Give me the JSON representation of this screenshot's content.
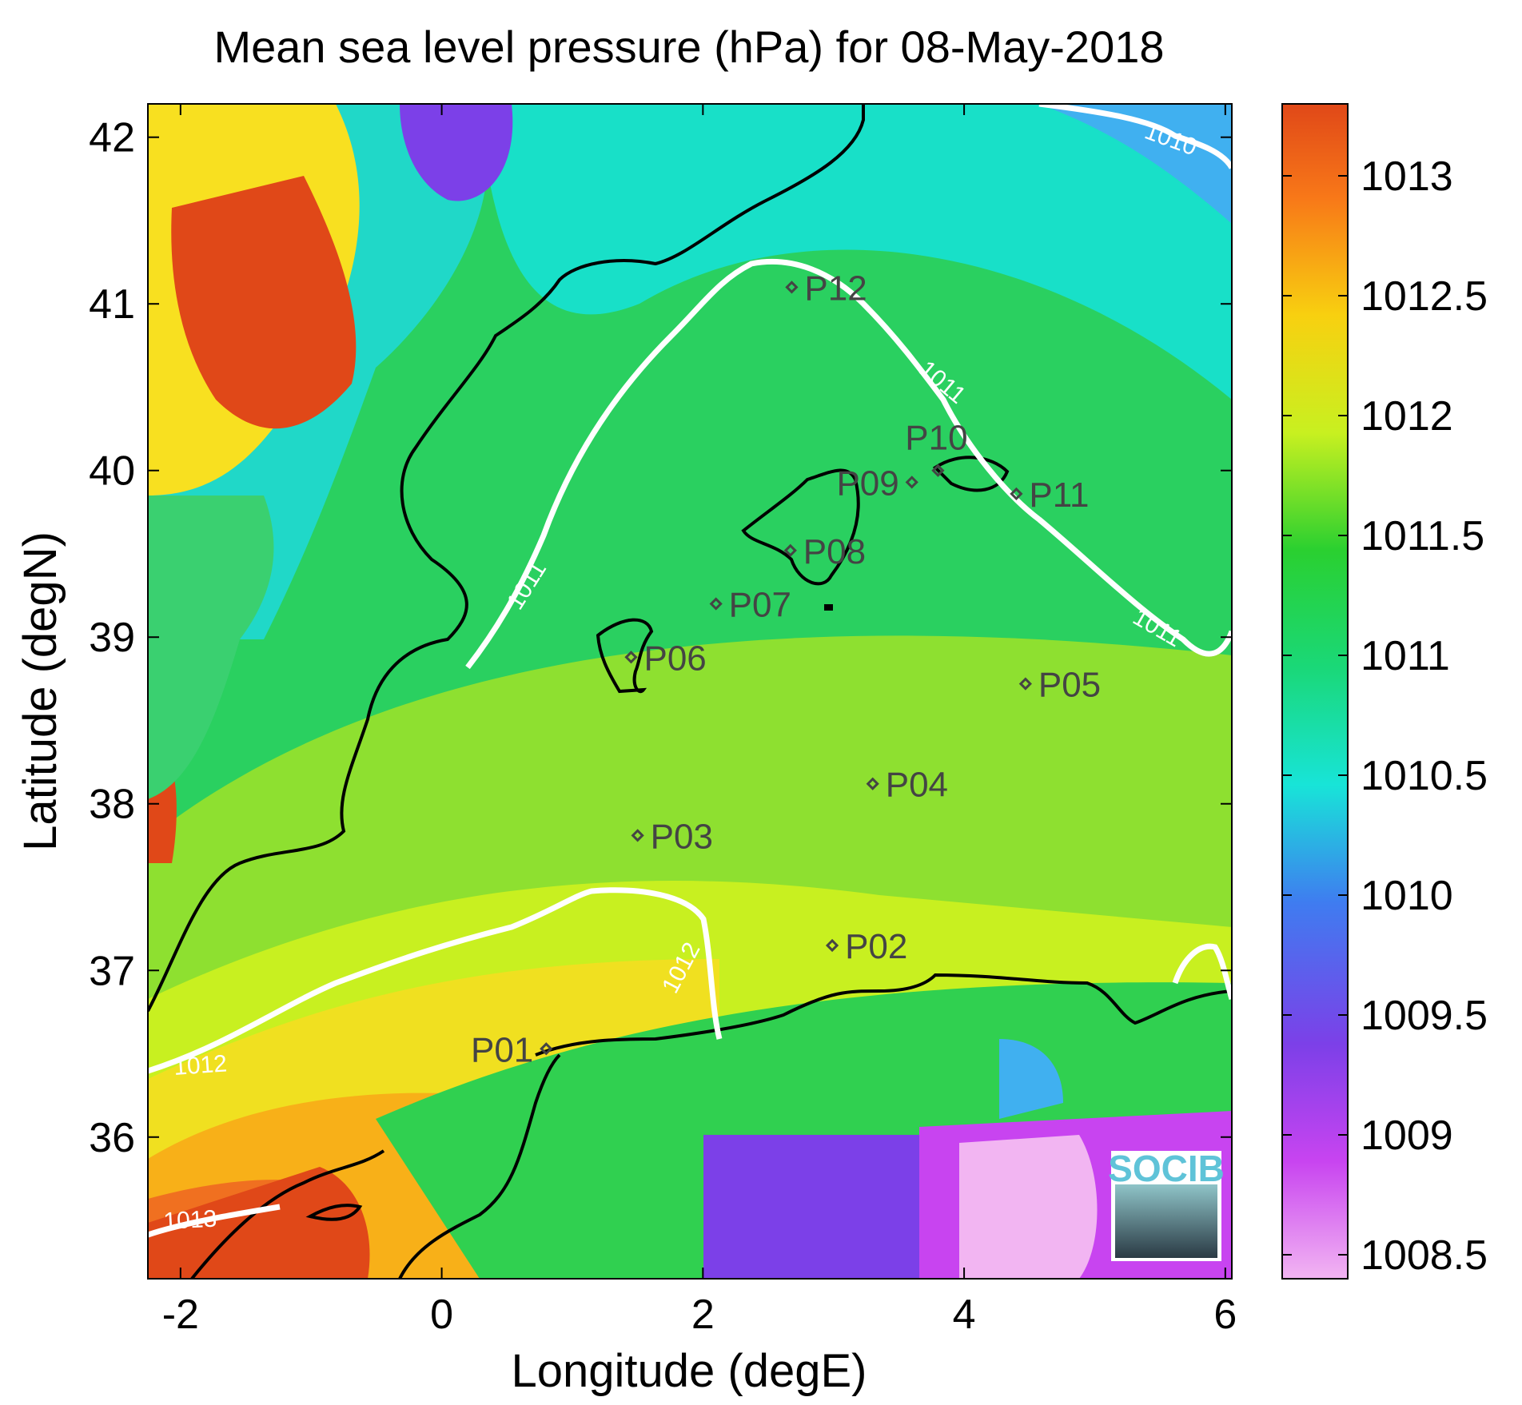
{
  "title": "Mean sea level pressure (hPa) for 08-May-2018",
  "map": {
    "xlabel": "Longitude (degE)",
    "ylabel": "Latitude (degN)",
    "xlim": [
      -2.25,
      6.05
    ],
    "ylim": [
      35.15,
      42.2
    ],
    "xticks": [
      -2,
      0,
      2,
      4,
      6
    ],
    "xtick_labels": [
      "-2",
      "0",
      "2",
      "4",
      "6"
    ],
    "yticks": [
      36,
      37,
      38,
      39,
      40,
      41,
      42
    ],
    "ytick_labels": [
      "36",
      "37",
      "38",
      "39",
      "40",
      "41",
      "42"
    ]
  },
  "stations": [
    {
      "id": "P01",
      "lon": 0.8,
      "lat": 36.53,
      "label_side": "left"
    },
    {
      "id": "P02",
      "lon": 2.99,
      "lat": 37.15,
      "label_side": "right"
    },
    {
      "id": "P03",
      "lon": 1.5,
      "lat": 37.81,
      "label_side": "right"
    },
    {
      "id": "P04",
      "lon": 3.3,
      "lat": 38.12,
      "label_side": "right"
    },
    {
      "id": "P05",
      "lon": 4.47,
      "lat": 38.72,
      "label_side": "right"
    },
    {
      "id": "P06",
      "lon": 1.45,
      "lat": 38.88,
      "label_side": "right"
    },
    {
      "id": "P07",
      "lon": 2.1,
      "lat": 39.2,
      "label_side": "right"
    },
    {
      "id": "P08",
      "lon": 2.67,
      "lat": 39.52,
      "label_side": "right"
    },
    {
      "id": "P09",
      "lon": 3.6,
      "lat": 39.93,
      "label_side": "left"
    },
    {
      "id": "P10",
      "lon": 3.8,
      "lat": 40.0,
      "label_side": "top"
    },
    {
      "id": "P11",
      "lon": 4.4,
      "lat": 39.86,
      "label_side": "right"
    },
    {
      "id": "P12",
      "lon": 2.68,
      "lat": 41.1,
      "label_side": "right"
    }
  ],
  "contours": [
    {
      "level": 1010,
      "label": "1010"
    },
    {
      "level": 1011,
      "label": "1011"
    },
    {
      "level": 1012,
      "label": "1012"
    },
    {
      "level": 1013,
      "label": "1013"
    }
  ],
  "colorbar": {
    "min": 1008.4,
    "max": 1013.3,
    "ticks": [
      1008.5,
      1009,
      1009.5,
      1010,
      1010.5,
      1011,
      1011.5,
      1012,
      1012.5,
      1013
    ],
    "tick_labels": [
      "1008.5",
      "1009",
      "1009.5",
      "1010",
      "1010.5",
      "1011",
      "1011.5",
      "1012",
      "1012.5",
      "1013"
    ],
    "colors": [
      "#f2b5f2",
      "#c844f0",
      "#7c40e8",
      "#3f7cf0",
      "#18e4d8",
      "#1ad878",
      "#2ad030",
      "#c8f020",
      "#f8d010",
      "#f87818",
      "#e04818"
    ]
  },
  "logo": {
    "text": "SOCIB"
  },
  "colors": {
    "coastline": "#000000",
    "contour": "#ffffff",
    "station": "#444444"
  }
}
